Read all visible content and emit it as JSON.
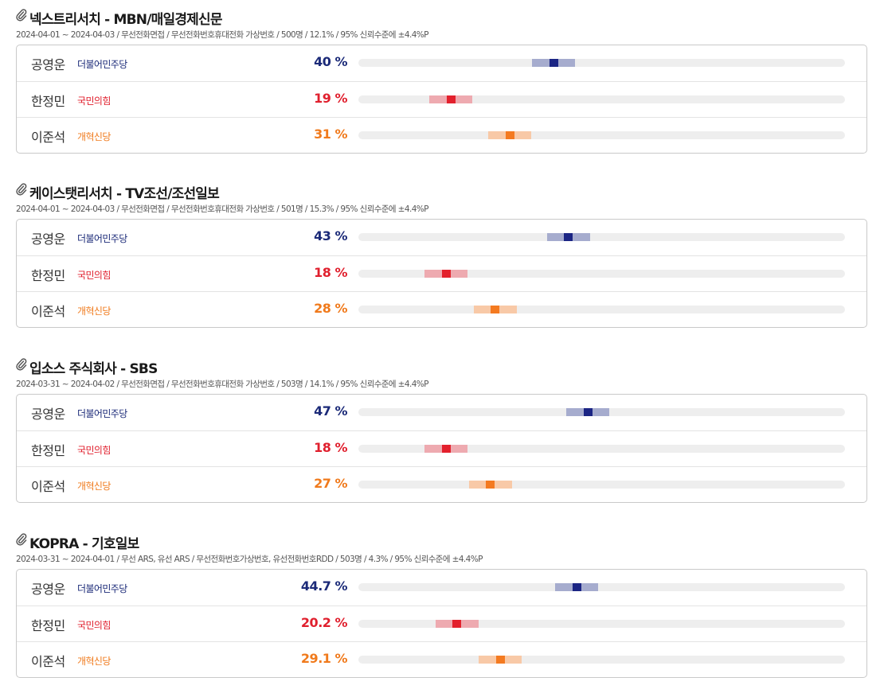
{
  "polls": [
    {
      "title": "넥스트리서치 - MBN/매일경제신문",
      "meta": "2024-04-01 ~ 2024-04-03 / 무선전화면접 / 무선전화번호휴대전화 가상번호 / 500명 / 12.1% / 95% 신뢰수준에 ±4.4%P",
      "results": [
        {
          "name": "공영운",
          "party": "더불어민주당",
          "pct_label": "40 %",
          "value": 40
        },
        {
          "name": "한정민",
          "party": "국민의힘",
          "pct_label": "19 %",
          "value": 19
        },
        {
          "name": "이준석",
          "party": "개혁신당",
          "pct_label": "31 %",
          "value": 31
        }
      ]
    },
    {
      "title": "케이스탯리서치 - TV조선/조선일보",
      "meta": "2024-04-01 ~ 2024-04-03 / 무선전화면접 / 무선전화번호휴대전화 가상번호 / 501명 / 15.3% / 95% 신뢰수준에 ±4.4%P",
      "results": [
        {
          "name": "공영운",
          "party": "더불어민주당",
          "pct_label": "43 %",
          "value": 43
        },
        {
          "name": "한정민",
          "party": "국민의힘",
          "pct_label": "18 %",
          "value": 18
        },
        {
          "name": "이준석",
          "party": "개혁신당",
          "pct_label": "28 %",
          "value": 28
        }
      ]
    },
    {
      "title": "입소스 주식회사 - SBS",
      "meta": "2024-03-31 ~ 2024-04-02 / 무선전화면접 / 무선전화번호휴대전화 가상번호 / 503명 / 14.1% / 95% 신뢰수준에 ±4.4%P",
      "results": [
        {
          "name": "공영운",
          "party": "더불어민주당",
          "pct_label": "47 %",
          "value": 47
        },
        {
          "name": "한정민",
          "party": "국민의힘",
          "pct_label": "18 %",
          "value": 18
        },
        {
          "name": "이준석",
          "party": "개혁신당",
          "pct_label": "27 %",
          "value": 27
        }
      ]
    },
    {
      "title": "KOPRA - 기호일보",
      "meta": "2024-03-31 ~ 2024-04-01 / 무선 ARS, 유선 ARS / 무선전화번호가상번호, 유선전화번호RDD / 503명 / 4.3% / 95% 신뢰수준에 ±4.4%P",
      "results": [
        {
          "name": "공영운",
          "party": "더불어민주당",
          "pct_label": "44.7 %",
          "value": 44.7
        },
        {
          "name": "한정민",
          "party": "국민의힘",
          "pct_label": "20.2 %",
          "value": 20.2
        },
        {
          "name": "이준석",
          "party": "개혁신당",
          "pct_label": "29.1 %",
          "value": 29.1
        }
      ]
    }
  ]
}
